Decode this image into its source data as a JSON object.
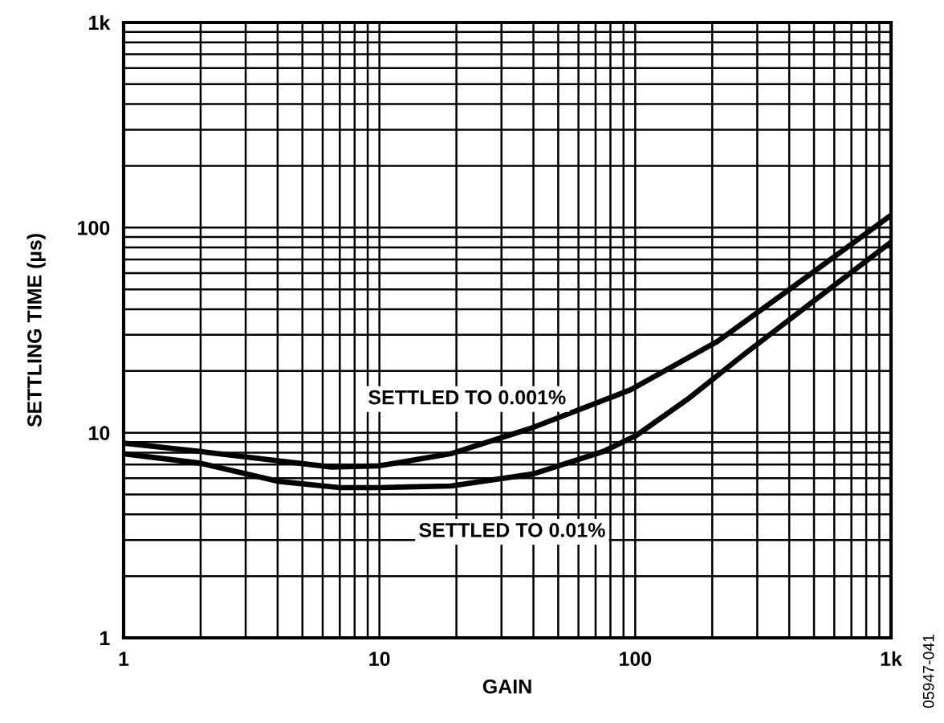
{
  "chart_data": {
    "type": "line",
    "xlabel": "GAIN",
    "ylabel": "SETTLING TIME (µs)",
    "log": "xy",
    "grid": true,
    "xlim": [
      1,
      1000
    ],
    "ylim": [
      1,
      1000
    ],
    "xticks": [
      1,
      10,
      100,
      {
        "value": 1000,
        "label": "1k"
      }
    ],
    "yticks": [
      1,
      10,
      100,
      {
        "value": 1000,
        "label": "1k"
      }
    ],
    "series": [
      {
        "color": "#000000",
        "x": [
          1,
          2,
          4,
          6.5,
          10,
          19,
          39,
          96,
          210,
          433,
          1000
        ],
        "values": [
          8.9,
          8.1,
          7.3,
          6.8,
          6.9,
          7.9,
          10.5,
          16.2,
          27.9,
          53.6,
          115
        ]
      },
      {
        "color": "#000000",
        "x": [
          1,
          2,
          4,
          7,
          10,
          19,
          40,
          75,
          101,
          163,
          263,
          500,
          1000
        ],
        "values": [
          7.9,
          7.1,
          5.8,
          5.4,
          5.4,
          5.5,
          6.3,
          8.1,
          9.7,
          14.8,
          23.8,
          44,
          85
        ]
      }
    ],
    "annotations": [
      {
        "text": "SETTLED TO 0.001%",
        "x": 22,
        "y": 8
      },
      {
        "text": "SETTLED TO 0.01%",
        "x": 33,
        "y": 6
      },
      "05947-041"
    ]
  }
}
